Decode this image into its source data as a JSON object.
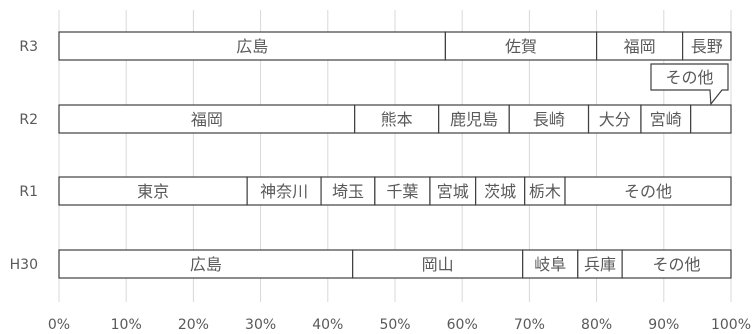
{
  "chart_data": {
    "type": "bar",
    "orientation": "horizontal",
    "stacked": true,
    "normalized": true,
    "xlim": [
      0,
      100
    ],
    "x_ticks": [
      "0%",
      "10%",
      "20%",
      "30%",
      "40%",
      "50%",
      "60%",
      "70%",
      "80%",
      "90%",
      "100%"
    ],
    "grid": "vertical",
    "legend": "none",
    "colors": {
      "fill": "#ffffff",
      "stroke": "#404040",
      "grid": "#d9d9d9",
      "text": "#595959"
    },
    "rows": [
      {
        "label": "R3",
        "segments": [
          {
            "name": "広島",
            "value": 57.5
          },
          {
            "name": "佐賀",
            "value": 22.5
          },
          {
            "name": "福岡",
            "value": 12.8
          },
          {
            "name": "長野",
            "value": 7.2
          }
        ]
      },
      {
        "label": "R2",
        "segments": [
          {
            "name": "福岡",
            "value": 44
          },
          {
            "name": "熊本",
            "value": 12.5
          },
          {
            "name": "鹿児島",
            "value": 10.5
          },
          {
            "name": "長崎",
            "value": 11.8
          },
          {
            "name": "大分",
            "value": 7.8
          },
          {
            "name": "宮崎",
            "value": 7.4
          },
          {
            "name": "その他",
            "value": 6
          }
        ]
      },
      {
        "label": "R1",
        "segments": [
          {
            "name": "東京",
            "value": 28
          },
          {
            "name": "神奈川",
            "value": 11
          },
          {
            "name": "埼玉",
            "value": 8
          },
          {
            "name": "千葉",
            "value": 8.2
          },
          {
            "name": "宮城",
            "value": 6.8
          },
          {
            "name": "茨城",
            "value": 7.3
          },
          {
            "name": "栃木",
            "value": 6
          },
          {
            "name": "その他",
            "value": 24.7
          }
        ]
      },
      {
        "label": "H30",
        "segments": [
          {
            "name": "広島",
            "value": 43.7
          },
          {
            "name": "岡山",
            "value": 25.3
          },
          {
            "name": "岐阜",
            "value": 8.2
          },
          {
            "name": "兵庫",
            "value": 6.6
          },
          {
            "name": "その他",
            "value": 16.2
          }
        ]
      }
    ],
    "annotations": [
      {
        "text": "その他",
        "row": "R2",
        "segment": "その他",
        "style": "callout"
      }
    ]
  }
}
